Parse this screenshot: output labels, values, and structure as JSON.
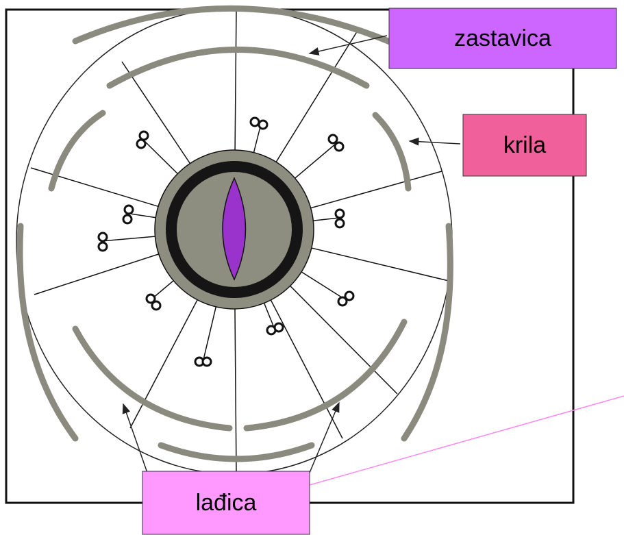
{
  "labels": {
    "standard": "zastavica",
    "wings": "krila",
    "keel": "lađica"
  }
}
